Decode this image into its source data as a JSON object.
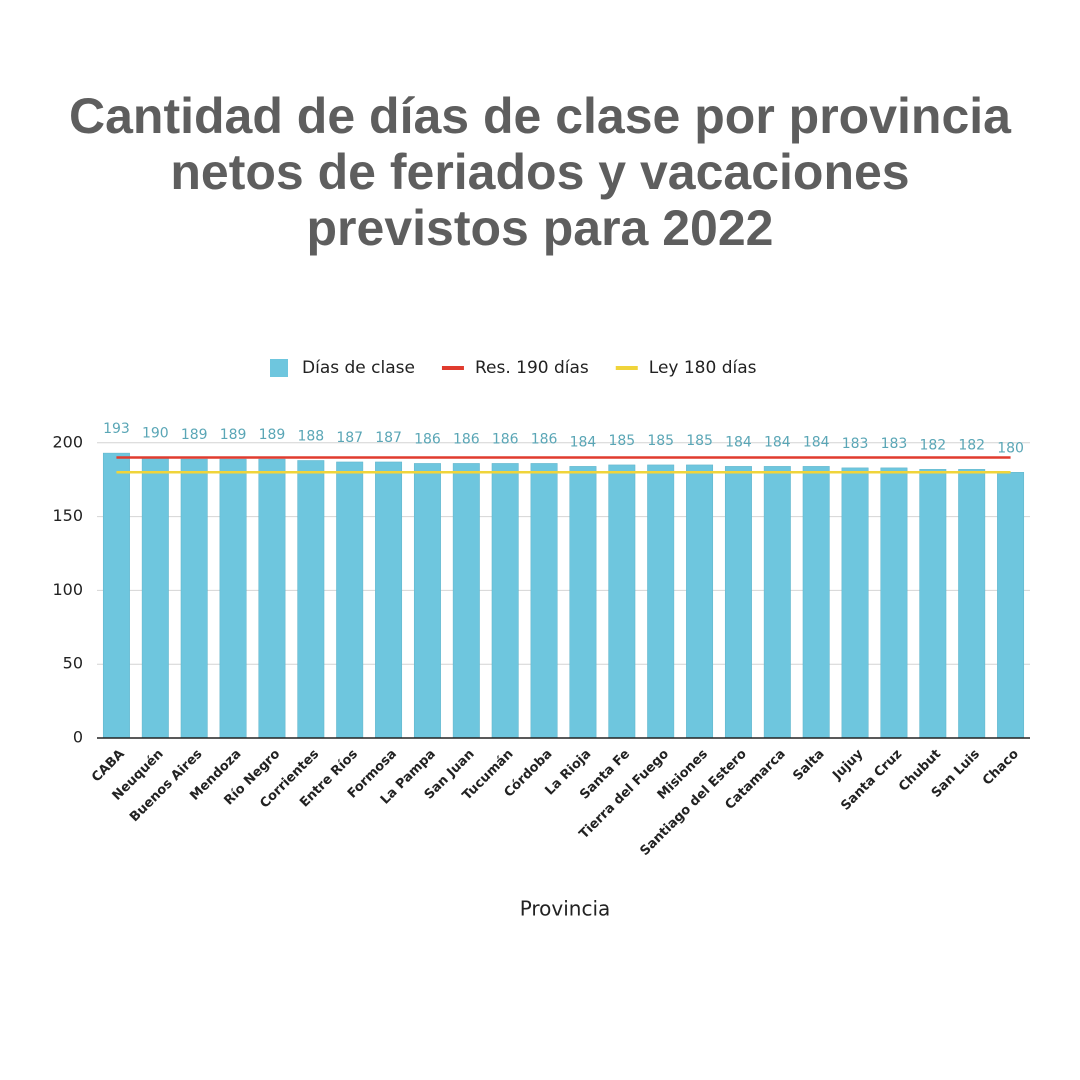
{
  "chart_data": {
    "type": "bar",
    "title": "Cantidad de días de clase por provincia netos de feriados y vacaciones previstos para 2022",
    "x_label": "Provincia",
    "categories": [
      "CABA",
      "Neuquén",
      "Buenos Aires",
      "Mendoza",
      "Río Negro",
      "Corrientes",
      "Entre Ríos",
      "Formosa",
      "La Pampa",
      "San Juan",
      "Tucumán",
      "Córdoba",
      "La Rioja",
      "Santa Fe",
      "Tierra del Fuego",
      "Misiones",
      "Santiago del Estero",
      "Catamarca",
      "Salta",
      "Jujuy",
      "Santa Cruz",
      "Chubut",
      "San Luis",
      "Chaco"
    ],
    "series": [
      {
        "name": "Días de clase",
        "type": "bar",
        "color": "#6ec6de",
        "values": [
          193,
          190,
          189,
          189,
          189,
          188,
          187,
          187,
          186,
          186,
          186,
          186,
          184,
          185,
          185,
          185,
          184,
          184,
          184,
          183,
          183,
          182,
          182,
          180
        ]
      },
      {
        "name": "Res. 190 días",
        "type": "line",
        "color": "#e03b2e",
        "values": [
          190,
          190,
          190,
          190,
          190,
          190,
          190,
          190,
          190,
          190,
          190,
          190,
          190,
          190,
          190,
          190,
          190,
          190,
          190,
          190,
          190,
          190,
          190,
          190
        ]
      },
      {
        "name": "Ley 180 días",
        "type": "line",
        "color": "#f0d43a",
        "values": [
          180,
          180,
          180,
          180,
          180,
          180,
          180,
          180,
          180,
          180,
          180,
          180,
          180,
          180,
          180,
          180,
          180,
          180,
          180,
          180,
          180,
          180,
          180,
          180
        ]
      }
    ],
    "ylim": [
      0,
      210
    ],
    "yticks": [
      0,
      50,
      100,
      150,
      200
    ],
    "grid": true,
    "legend": "top"
  }
}
